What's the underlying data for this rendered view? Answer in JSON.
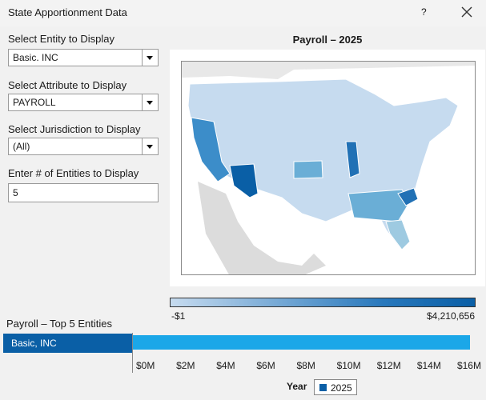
{
  "window": {
    "title": "State Apportionment Data",
    "help_label": "?"
  },
  "controls": {
    "entity_label": "Select Entity to Display",
    "entity_value": "Basic. INC",
    "attribute_label": "Select Attribute to Display",
    "attribute_value": "PAYROLL",
    "jurisdiction_label": "Select Jurisdiction to Display",
    "jurisdiction_value": "(All)",
    "count_label": "Enter # of Entities to Display",
    "count_value": "5"
  },
  "map": {
    "title": "Payroll – 2025",
    "legend_min": "-$1",
    "legend_max": "$4,210,656",
    "colors": {
      "light": "#c6dbef",
      "mid": "#6aaed6",
      "dark": "#2171b5",
      "darkest": "#0a5fa6"
    }
  },
  "bar_chart": {
    "title": "Payroll – Top 5 Entities",
    "entity_label": "Basic, INC",
    "axis_title": "Year",
    "legend_label": "2025",
    "bar_color": "#1ba7e8",
    "chart_data": {
      "type": "bar",
      "categories": [
        "Basic, INC"
      ],
      "series": [
        {
          "name": "2025",
          "values": [
            16.8
          ]
        }
      ],
      "xlabel": "Year",
      "units": "M",
      "xlim": [
        0,
        17
      ],
      "ticks": [
        "$0M",
        "$2M",
        "$4M",
        "$6M",
        "$8M",
        "$10M",
        "$12M",
        "$14M",
        "$16M"
      ]
    }
  }
}
